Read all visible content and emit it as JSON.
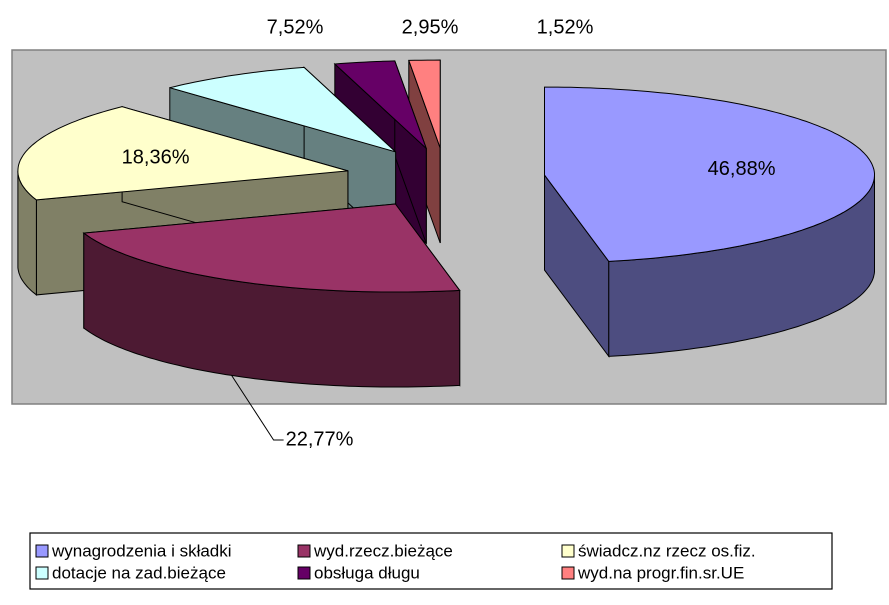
{
  "chart_data": {
    "type": "pie",
    "categories": [
      "wynagrodzenia i składki",
      "wyd.rzecz.bieżące",
      "świadcz.nz rzecz os.fiz.",
      "dotacje na zad.bieżące",
      "obsługa długu",
      "wyd.na progr.fin.sr.UE"
    ],
    "values": [
      46.88,
      22.77,
      18.36,
      7.52,
      2.95,
      1.52
    ],
    "value_labels": [
      "46,88%",
      "22,77%",
      "18,36%",
      "7,52%",
      "2,95%",
      "1,52%"
    ],
    "colors": [
      "#9999ff",
      "#993366",
      "#ffffcc",
      "#ccffff",
      "#660066",
      "#ff8080"
    ],
    "legend": "bottom"
  }
}
